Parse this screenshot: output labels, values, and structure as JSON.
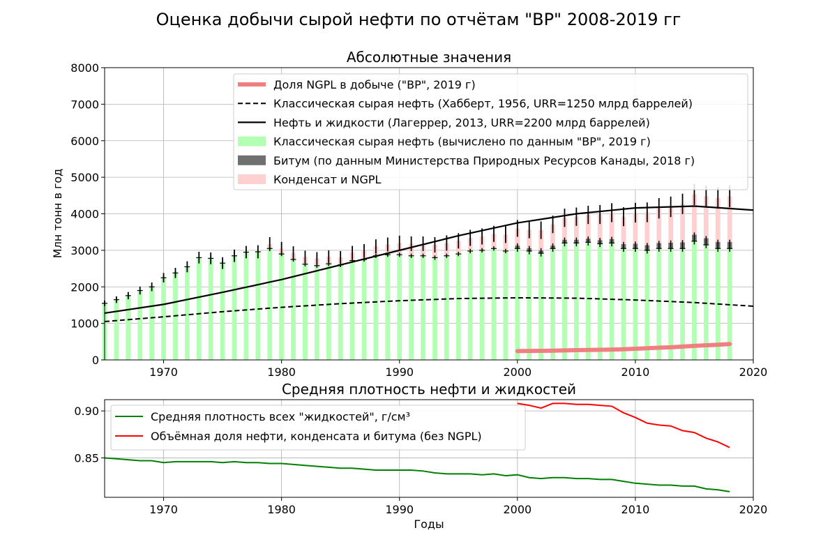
{
  "suptitle": "Оценка добычи сырой нефти по отчётам \"BP\" 2008-2019 гг",
  "chart_data": [
    {
      "type": "bar",
      "title": "Абсолютные значения",
      "xlabel": "",
      "ylabel": "Млн тонн в год",
      "xlim": [
        1965,
        2020
      ],
      "ylim": [
        0,
        8000
      ],
      "xticks": [
        "1970",
        "1980",
        "1990",
        "2000",
        "2010",
        "2020"
      ],
      "yticks": [
        "0",
        "1000",
        "2000",
        "3000",
        "4000",
        "5000",
        "6000",
        "7000",
        "8000"
      ],
      "grid": true,
      "legend_position": "top-right",
      "colors": {
        "crude": "#b3ffb3",
        "bitumen": "#707070",
        "condensate": "#ffd0d0",
        "ngpl": "#f08080",
        "error": "#000000",
        "hubbert": "#000000",
        "laherrere": "#000000"
      },
      "legend": [
        {
          "key": "ngpl",
          "label": "Доля NGPL в добыче (\"BP\", 2019 г)"
        },
        {
          "key": "hubbert",
          "label": "Классическая сырая нефть (Хабберт, 1956, URR=1250 млрд баррелей)"
        },
        {
          "key": "laherrere",
          "label": "Нефть и жидкости (Лагеррер, 2013, URR=2200 млрд баррелей)"
        },
        {
          "key": "crude",
          "label": "Классическая сырая нефть (вычислено по данным \"BP\", 2019 г)"
        },
        {
          "key": "bitumen",
          "label": "Битум (по данным Министерства Природных Ресурсов Канады, 2018 г)"
        },
        {
          "key": "condensate",
          "label": "Конденсат и NGPL"
        }
      ],
      "years": [
        1965,
        1966,
        1967,
        1968,
        1969,
        1970,
        1971,
        1972,
        1973,
        1974,
        1975,
        1976,
        1977,
        1978,
        1979,
        1980,
        1981,
        1982,
        1983,
        1984,
        1985,
        1986,
        1987,
        1988,
        1989,
        1990,
        1991,
        1992,
        1993,
        1994,
        1995,
        1996,
        1997,
        1998,
        1999,
        2000,
        2001,
        2002,
        2003,
        2004,
        2005,
        2006,
        2007,
        2008,
        2009,
        2010,
        2011,
        2012,
        2013,
        2014,
        2015,
        2016,
        2017,
        2018
      ],
      "crude": [
        1550,
        1650,
        1760,
        1900,
        2000,
        2250,
        2380,
        2550,
        2800,
        2780,
        2650,
        2850,
        2950,
        2960,
        3050,
        2900,
        2750,
        2620,
        2580,
        2630,
        2600,
        2720,
        2750,
        2850,
        2880,
        2880,
        2850,
        2850,
        2800,
        2850,
        2900,
        2980,
        3000,
        3050,
        2980,
        3050,
        2980,
        2920,
        3050,
        3200,
        3200,
        3220,
        3180,
        3200,
        3050,
        3050,
        3000,
        3050,
        3050,
        3050,
        3250,
        3150,
        3050,
        3050
      ],
      "bitumen": [
        0,
        0,
        0,
        0,
        0,
        0,
        0,
        0,
        0,
        0,
        0,
        0,
        0,
        0,
        0,
        0,
        0,
        0,
        0,
        0,
        0,
        0,
        0,
        0,
        0,
        0,
        0,
        0,
        0,
        0,
        0,
        0,
        0,
        0,
        0,
        80,
        80,
        80,
        80,
        90,
        90,
        100,
        100,
        110,
        120,
        130,
        140,
        150,
        160,
        170,
        180,
        180,
        180,
        180
      ],
      "condensate_ngpl": [
        0,
        0,
        0,
        0,
        0,
        0,
        0,
        0,
        0,
        0,
        0,
        0,
        0,
        0,
        120,
        150,
        180,
        200,
        200,
        200,
        210,
        220,
        240,
        260,
        280,
        320,
        330,
        330,
        350,
        350,
        360,
        360,
        380,
        400,
        450,
        470,
        500,
        550,
        580,
        600,
        630,
        650,
        700,
        720,
        750,
        850,
        900,
        950,
        980,
        1050,
        1100,
        1150,
        1200,
        1250
      ],
      "error_bar_half": [
        80,
        90,
        100,
        110,
        120,
        130,
        140,
        150,
        160,
        160,
        160,
        170,
        170,
        180,
        190,
        180,
        180,
        170,
        170,
        170,
        170,
        180,
        180,
        190,
        190,
        200,
        200,
        200,
        210,
        210,
        210,
        220,
        220,
        220,
        230,
        230,
        230,
        240,
        240,
        250,
        250,
        250,
        260,
        260,
        260,
        270,
        270,
        280,
        280,
        280,
        290,
        290,
        290,
        300
      ],
      "ngpl_share": {
        "years": [
          2000,
          2001,
          2002,
          2003,
          2004,
          2005,
          2006,
          2007,
          2008,
          2009,
          2010,
          2011,
          2012,
          2013,
          2014,
          2015,
          2016,
          2017,
          2018
        ],
        "values": [
          240,
          245,
          248,
          252,
          260,
          268,
          272,
          276,
          282,
          290,
          305,
          320,
          335,
          345,
          365,
          385,
          400,
          415,
          435
        ]
      },
      "hubbert": {
        "x": [
          1965,
          1970,
          1975,
          1980,
          1985,
          1990,
          1995,
          2000,
          2005,
          2010,
          2015,
          2020
        ],
        "y": [
          1050,
          1180,
          1320,
          1440,
          1540,
          1620,
          1680,
          1700,
          1690,
          1640,
          1570,
          1470
        ]
      },
      "laherrere": {
        "x": [
          1965,
          1970,
          1975,
          1980,
          1985,
          1990,
          1995,
          2000,
          2005,
          2010,
          2015,
          2020
        ],
        "y": [
          1280,
          1520,
          1850,
          2200,
          2600,
          3000,
          3400,
          3750,
          4000,
          4160,
          4210,
          4100
        ]
      }
    },
    {
      "type": "line",
      "title": "Средняя плотность нефти и жидкостей",
      "xlabel": "Годы",
      "ylabel": "",
      "xlim": [
        1965,
        2020
      ],
      "ylim": [
        0.808,
        0.912
      ],
      "xticks": [
        "1970",
        "1980",
        "1990",
        "2000",
        "2010",
        "2020"
      ],
      "yticks": [
        "0.85",
        "0.90"
      ],
      "grid": true,
      "legend_position": "top-left",
      "series": [
        {
          "name": "Средняя плотность всех \"жидкостей\", г/см³",
          "color": "#008000",
          "x": [
            1965,
            1966,
            1967,
            1968,
            1969,
            1970,
            1971,
            1972,
            1973,
            1974,
            1975,
            1976,
            1977,
            1978,
            1979,
            1980,
            1981,
            1982,
            1983,
            1984,
            1985,
            1986,
            1987,
            1988,
            1989,
            1990,
            1991,
            1992,
            1993,
            1994,
            1995,
            1996,
            1997,
            1998,
            1999,
            2000,
            2001,
            2002,
            2003,
            2004,
            2005,
            2006,
            2007,
            2008,
            2009,
            2010,
            2011,
            2012,
            2013,
            2014,
            2015,
            2016,
            2017,
            2018
          ],
          "y": [
            0.85,
            0.849,
            0.848,
            0.847,
            0.847,
            0.845,
            0.846,
            0.846,
            0.846,
            0.846,
            0.845,
            0.846,
            0.845,
            0.845,
            0.844,
            0.844,
            0.843,
            0.842,
            0.841,
            0.84,
            0.839,
            0.839,
            0.838,
            0.837,
            0.837,
            0.837,
            0.837,
            0.836,
            0.834,
            0.833,
            0.833,
            0.833,
            0.832,
            0.833,
            0.831,
            0.832,
            0.829,
            0.828,
            0.829,
            0.829,
            0.828,
            0.828,
            0.827,
            0.827,
            0.825,
            0.823,
            0.822,
            0.821,
            0.821,
            0.82,
            0.82,
            0.817,
            0.816,
            0.814
          ]
        },
        {
          "name": "Объёмная доля нефти, конденсата и битума (без NGPL)",
          "color": "#ff0000",
          "x": [
            2000,
            2001,
            2002,
            2003,
            2004,
            2005,
            2006,
            2007,
            2008,
            2009,
            2010,
            2011,
            2012,
            2013,
            2014,
            2015,
            2016,
            2017,
            2018
          ],
          "y": [
            0.908,
            0.906,
            0.903,
            0.908,
            0.908,
            0.907,
            0.907,
            0.906,
            0.905,
            0.898,
            0.893,
            0.887,
            0.885,
            0.884,
            0.879,
            0.877,
            0.871,
            0.867,
            0.861
          ]
        }
      ]
    }
  ]
}
